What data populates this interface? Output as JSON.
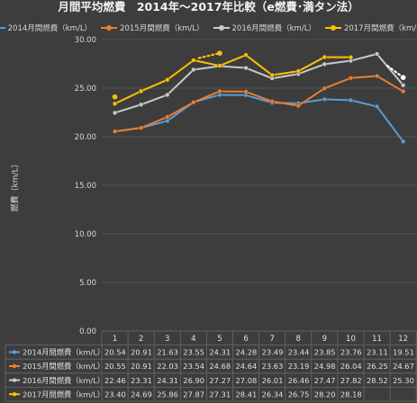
{
  "title": "月間平均燃費　2014年～2017年比較（e燃費･満タン法）",
  "colors": {
    "s2014": "#5b9bd5",
    "s2015": "#ed7d31",
    "s2016": "#c9c9c9",
    "s2017": "#ffc000",
    "dotted": "#ffffff"
  },
  "chart_data": {
    "type": "line",
    "title": "月間平均燃費　2014年～2017年比較（e燃費･満タン法）",
    "xlabel": "",
    "ylabel": "燃費（km/L）",
    "ylim": [
      0,
      30
    ],
    "yticks": [
      "0.00",
      "5.00",
      "10.00",
      "15.00",
      "20.00",
      "25.00",
      "30.00"
    ],
    "categories": [
      "1",
      "2",
      "3",
      "4",
      "5",
      "6",
      "7",
      "8",
      "9",
      "10",
      "11",
      "12"
    ],
    "legend_position": "top",
    "grid": true,
    "series": [
      {
        "name": "2014月間燃費（km/L）",
        "values": [
          20.54,
          20.91,
          21.63,
          23.55,
          24.31,
          24.28,
          23.49,
          23.44,
          23.85,
          23.76,
          23.11,
          19.51
        ],
        "labels": [
          "20.54",
          "20.91",
          "21.63",
          "23.55",
          "24.31",
          "24.28",
          "23.49",
          "23.44",
          "23.85",
          "23.76",
          "23.11",
          "19.51"
        ]
      },
      {
        "name": "2015月間燃費（km/L）",
        "values": [
          20.55,
          20.91,
          22.03,
          23.54,
          24.68,
          24.64,
          23.63,
          23.19,
          24.98,
          26.04,
          26.25,
          24.67
        ],
        "labels": [
          "20.55",
          "20.91",
          "22.03",
          "23.54",
          "24.68",
          "24.64",
          "23.63",
          "23.19",
          "24.98",
          "26.04",
          "26.25",
          "24.67"
        ]
      },
      {
        "name": "2016月間燃費（km/L）",
        "values": [
          22.46,
          23.31,
          24.31,
          26.9,
          27.27,
          27.08,
          26.01,
          26.46,
          27.47,
          27.82,
          28.52,
          25.3
        ],
        "labels": [
          "22.46",
          "23.31",
          "24.31",
          "26.90",
          "27.27",
          "27.08",
          "26.01",
          "26.46",
          "27.47",
          "27.82",
          "28.52",
          "25.30"
        ]
      },
      {
        "name": "2017月間燃費（km/L）",
        "values": [
          23.4,
          24.69,
          25.86,
          27.87,
          27.31,
          28.41,
          26.34,
          26.75,
          28.2,
          28.18,
          null,
          null
        ],
        "labels": [
          "23.40",
          "24.69",
          "25.86",
          "27.87",
          "27.31",
          "28.41",
          "26.34",
          "26.75",
          "28.20",
          "28.18",
          "",
          ""
        ]
      }
    ],
    "dotted_markers": [
      {
        "x": 1,
        "y": 24.1
      },
      {
        "x": 4.2,
        "y": 28.1
      },
      {
        "x": 5,
        "y": 28.6
      },
      {
        "x": 11.4,
        "y": 27.3
      },
      {
        "x": 12,
        "y": 26.1
      }
    ]
  }
}
